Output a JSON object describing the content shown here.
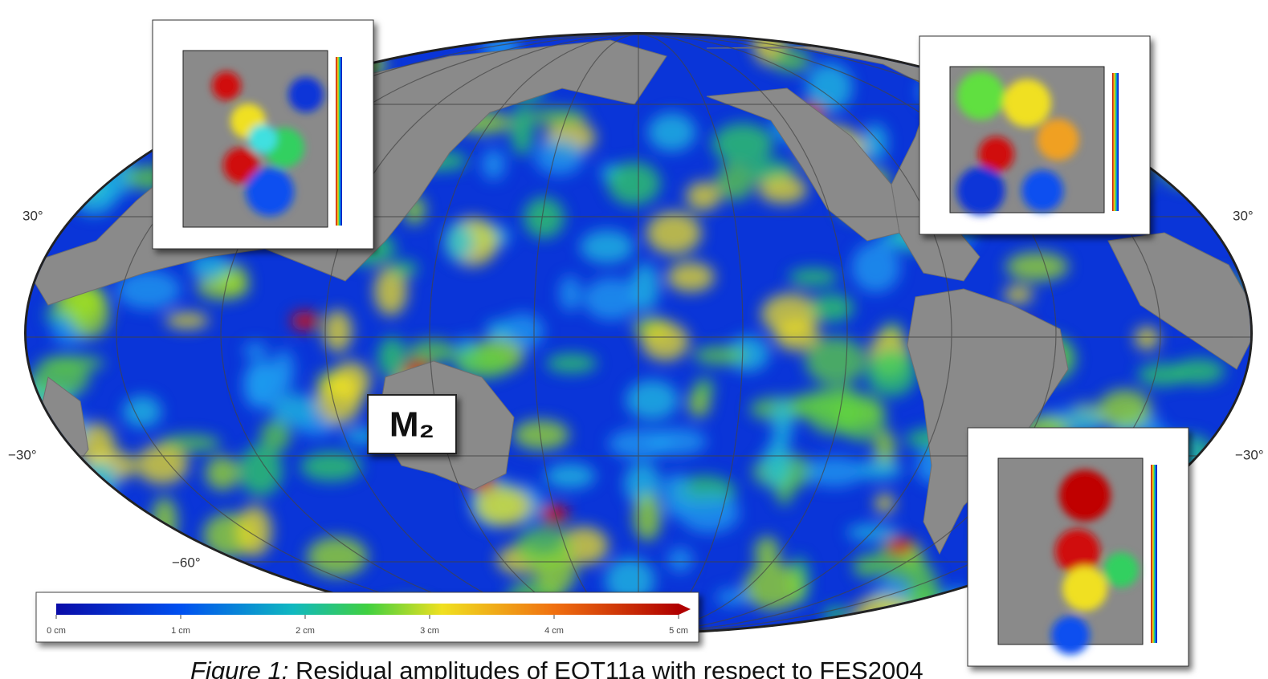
{
  "map": {
    "lat_labels_left": [
      "30°",
      "−30°",
      "−60°"
    ],
    "lat_labels_right": [
      "30°",
      "−30°"
    ],
    "tide_label": "M₂",
    "colorbar": {
      "lim": [
        0,
        5
      ],
      "ticks": [
        {
          "value": 0,
          "label": "0 cm"
        },
        {
          "value": 1,
          "label": "1 cm"
        },
        {
          "value": 2,
          "label": "2 cm"
        },
        {
          "value": 3,
          "label": "3 cm"
        },
        {
          "value": 4,
          "label": "4 cm"
        },
        {
          "value": 5,
          "label": "5 cm"
        }
      ]
    },
    "caption": {
      "label": "Figure 1:",
      "text": " Residual amplitudes of EOT11a with respect to FES2004"
    }
  }
}
